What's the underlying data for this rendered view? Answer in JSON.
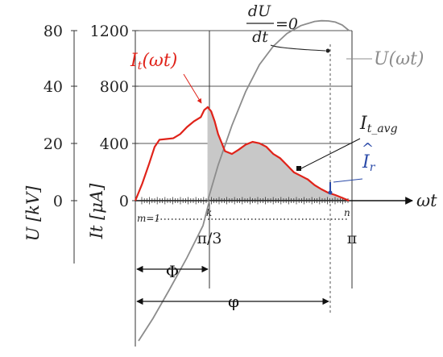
{
  "chart_data": {
    "type": "line",
    "axes": {
      "U": {
        "label": "U [kV]",
        "ticks": [
          "80",
          "40",
          "20",
          "0"
        ]
      },
      "It": {
        "label": "It [μA]",
        "ticks": [
          "1200",
          "800",
          "400",
          "0"
        ],
        "ylim": [
          0,
          1200
        ]
      },
      "x": {
        "label": "ωt",
        "ticks": [
          "π/3",
          "π"
        ],
        "xlim": [
          0,
          3.1416
        ]
      }
    },
    "index_labels": {
      "start": "m=1",
      "mid": "k",
      "end": "n"
    },
    "series": [
      {
        "name": "It(ωt)",
        "color": "#e0231a",
        "x": [
          0.0,
          0.1,
          0.2,
          0.28,
          0.35,
          0.45,
          0.55,
          0.65,
          0.75,
          0.85,
          0.95,
          1.0,
          1.05,
          1.1,
          1.15,
          1.2,
          1.3,
          1.4,
          1.5,
          1.6,
          1.7,
          1.8,
          1.9,
          2.0,
          2.1,
          2.2,
          2.3,
          2.4,
          2.5,
          2.6,
          2.7,
          2.8,
          2.9,
          3.0,
          3.1
        ],
        "y": [
          0,
          120,
          260,
          380,
          430,
          435,
          440,
          470,
          520,
          560,
          590,
          640,
          660,
          630,
          560,
          470,
          350,
          330,
          360,
          395,
          415,
          405,
          380,
          330,
          300,
          250,
          200,
          175,
          150,
          110,
          80,
          55,
          40,
          20,
          0
        ]
      },
      {
        "name": "U(ωt)",
        "color": "#8c8c8c",
        "x": [
          1.05,
          1.2,
          1.4,
          1.6,
          1.8,
          2.0,
          2.2,
          2.4,
          2.6,
          2.7,
          2.8,
          2.9,
          3.0,
          3.1
        ],
        "y": [
          0,
          250,
          530,
          770,
          960,
          1090,
          1180,
          1235,
          1265,
          1270,
          1268,
          1260,
          1240,
          1200
        ]
      }
    ],
    "shaded_region": {
      "label": "It_avg",
      "from": 1.047,
      "to": 3.1416,
      "color": "#c8c8c8"
    },
    "annotations": {
      "derivative": {
        "numerator": "dU",
        "denominator": "dt",
        "rhs": "=0"
      },
      "ir_hat": {
        "label": "Îr",
        "color": "#2a4aa8"
      },
      "phi_upper": "Φ",
      "phi_lower": "φ"
    }
  }
}
